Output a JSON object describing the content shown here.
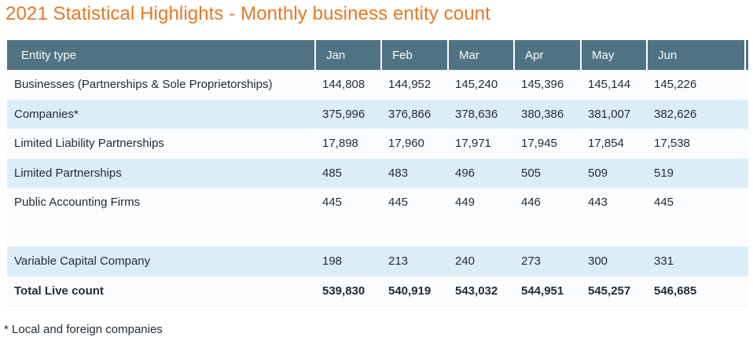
{
  "page": {
    "title": "2021 Statistical Highlights - Monthly business entity count",
    "footnote": "* Local and foreign companies"
  },
  "colors": {
    "title": "#e87722",
    "header_bg": "#507384",
    "header_text": "#fcfcf5",
    "shaded_row_bg": "#ddedf7",
    "plain_row_bg": "#fbfcfd",
    "body_text": "#212d36"
  },
  "table": {
    "columns": [
      "Entity type",
      "Jan",
      "Feb",
      "Mar",
      "Apr",
      "May",
      "Jun"
    ],
    "rows": [
      {
        "label": "Businesses (Partnerships & Sole Proprietorships)",
        "values": [
          "144,808",
          "144,952",
          "145,240",
          "145,396",
          "145,144",
          "145,226"
        ],
        "shaded": false,
        "bold": false,
        "empty": false
      },
      {
        "label": "Companies*",
        "values": [
          "375,996",
          "376,866",
          "378,636",
          "380,386",
          "381,007",
          "382,626"
        ],
        "shaded": true,
        "bold": false,
        "empty": false
      },
      {
        "label": "Limited Liability Partnerships",
        "values": [
          "17,898",
          "17,960",
          "17,971",
          "17,945",
          "17,854",
          "17,538"
        ],
        "shaded": false,
        "bold": false,
        "empty": false
      },
      {
        "label": "Limited Partnerships",
        "values": [
          "485",
          "483",
          "496",
          "505",
          "509",
          "519"
        ],
        "shaded": true,
        "bold": false,
        "empty": false
      },
      {
        "label": "Public Accounting Firms",
        "values": [
          "445",
          "445",
          "449",
          "446",
          "443",
          "445"
        ],
        "shaded": false,
        "bold": false,
        "empty": false
      },
      {
        "label": "",
        "values": [
          "",
          "",
          "",
          "",
          "",
          ""
        ],
        "shaded": false,
        "bold": false,
        "empty": true
      },
      {
        "label": "Variable Capital Company",
        "values": [
          "198",
          "213",
          "240",
          "273",
          "300",
          "331"
        ],
        "shaded": true,
        "bold": false,
        "empty": false
      },
      {
        "label": "Total Live count",
        "values": [
          "539,830",
          "540,919",
          "543,032",
          "544,951",
          "545,257",
          "546,685"
        ],
        "shaded": false,
        "bold": true,
        "empty": false
      }
    ]
  },
  "chart_data": {
    "type": "table",
    "title": "2021 Statistical Highlights - Monthly business entity count",
    "columns": [
      "Entity type",
      "Jan",
      "Feb",
      "Mar",
      "Apr",
      "May",
      "Jun"
    ],
    "rows": [
      {
        "label": "Businesses (Partnerships & Sole Proprietorships)",
        "values": [
          144808,
          144952,
          145240,
          145396,
          145144,
          145226
        ]
      },
      {
        "label": "Companies*",
        "values": [
          375996,
          376866,
          378636,
          380386,
          381007,
          382626
        ]
      },
      {
        "label": "Limited Liability Partnerships",
        "values": [
          17898,
          17960,
          17971,
          17945,
          17854,
          17538
        ]
      },
      {
        "label": "Limited Partnerships",
        "values": [
          485,
          483,
          496,
          505,
          509,
          519
        ]
      },
      {
        "label": "Public Accounting Firms",
        "values": [
          445,
          445,
          449,
          446,
          443,
          445
        ]
      },
      {
        "label": "Variable Capital Company",
        "values": [
          198,
          213,
          240,
          273,
          300,
          331
        ]
      },
      {
        "label": "Total Live count",
        "values": [
          539830,
          540919,
          543032,
          544951,
          545257,
          546685
        ]
      }
    ],
    "footnote": "* Local and foreign companies"
  }
}
